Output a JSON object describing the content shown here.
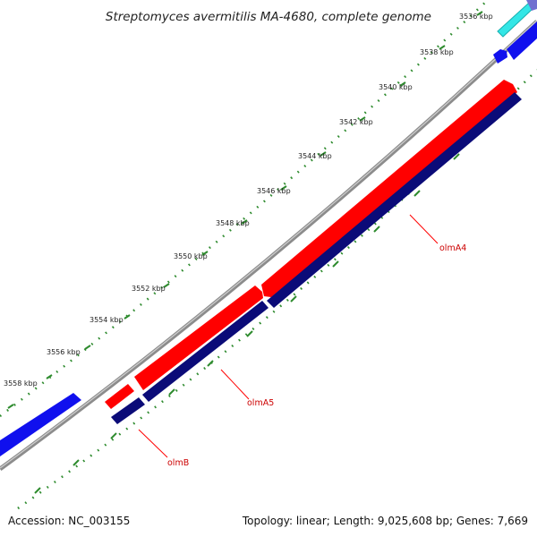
{
  "title": "Streptomyces avermitilis MA-4680, complete genome",
  "footer": {
    "accession": "Accession: NC_003155",
    "summary": "Topology: linear; Length: 9,025,608 bp; Genes: 7,669"
  },
  "scale_labels": [
    "3536 kbp",
    "3538 kbp",
    "3540 kbp",
    "3542 kbp",
    "3544 kbp",
    "3546 kbp",
    "3548 kbp",
    "3550 kbp",
    "3552 kbp",
    "3554 kbp",
    "3556 kbp",
    "3558 kbp"
  ],
  "gene_labels": [
    "olmA4",
    "olmA5",
    "olmB"
  ],
  "colors": {
    "backbone": "#8c8c8c",
    "tick": "#2e8b2e",
    "cds_red": "#ff0000",
    "cds_navy": "#0b0b78",
    "gene_blue": "#1010ee",
    "gene_cyan": "#33e6e6",
    "gene_purple": "#7070d0",
    "label_red": "#cc0000"
  }
}
